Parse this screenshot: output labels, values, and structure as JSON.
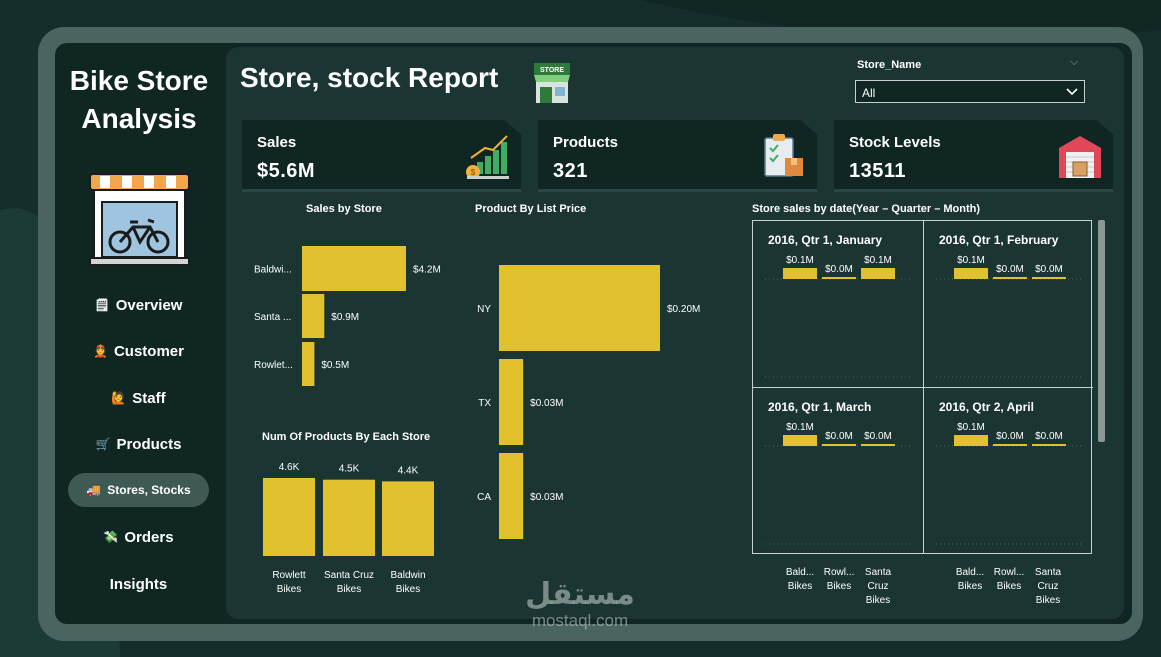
{
  "app": {
    "title_line1": "Bike Store",
    "title_line2": "Analysis"
  },
  "sidebar": {
    "items": [
      {
        "label": "Overview",
        "icon": "document-icon",
        "glyph": "🗒"
      },
      {
        "label": "Customer",
        "icon": "person-icon",
        "glyph": "👲"
      },
      {
        "label": "Staff",
        "icon": "staff-icon",
        "glyph": "🙋"
      },
      {
        "label": "Products",
        "icon": "cart-icon",
        "glyph": "🛒"
      },
      {
        "label": "Stores, Stocks",
        "icon": "truck-icon",
        "glyph": "🚚",
        "active": true
      },
      {
        "label": "Orders",
        "icon": "money-icon",
        "glyph": "💸"
      },
      {
        "label": "Insights",
        "icon": "",
        "glyph": ""
      }
    ]
  },
  "header": {
    "title": "Store, stock Report",
    "store_icon_text": "STORE"
  },
  "slicer": {
    "label": "Store_Name",
    "value": "All"
  },
  "kpis": [
    {
      "label": "Sales",
      "value": "$5.6M",
      "icon": "growth-chart-icon"
    },
    {
      "label": "Products",
      "value": "321",
      "icon": "clipboard-box-icon"
    },
    {
      "label": "Stock Levels",
      "value": "13511",
      "icon": "warehouse-icon"
    }
  ],
  "colors": {
    "bar": "#e2c12f",
    "panel": "#1b3532",
    "card": "#0f2623",
    "frame": "#4a6460"
  },
  "chart_data": [
    {
      "type": "bar",
      "orientation": "horizontal",
      "title": "Sales by Store",
      "categories": [
        "Baldwi...",
        "Santa ...",
        "Rowlet..."
      ],
      "values": [
        4.2,
        0.9,
        0.5
      ],
      "labels": [
        "$4.2M",
        "$0.9M",
        "$0.5M"
      ],
      "unit": "$M"
    },
    {
      "type": "bar",
      "orientation": "horizontal",
      "title": "Product By List Price",
      "categories": [
        "NY",
        "TX",
        "CA"
      ],
      "values": [
        0.2,
        0.03,
        0.03
      ],
      "labels": [
        "$0.20M",
        "$0.03M",
        "$0.03M"
      ],
      "unit": "$M"
    },
    {
      "type": "bar",
      "orientation": "vertical",
      "title": "Num Of Products By Each Store",
      "categories": [
        "Rowlett Bikes",
        "Santa Cruz Bikes",
        "Baldwin Bikes"
      ],
      "category_lines": [
        [
          "Rowlett",
          "Bikes"
        ],
        [
          "Santa Cruz",
          "Bikes"
        ],
        [
          "Baldwin",
          "Bikes"
        ]
      ],
      "values": [
        4.6,
        4.5,
        4.4
      ],
      "labels": [
        "4.6K",
        "4.5K",
        "4.4K"
      ],
      "unit": "K"
    },
    {
      "type": "bar",
      "title": "Store sales by date(Year – Quarter – Month)",
      "panels": [
        {
          "title": "2016, Qtr 1, January",
          "values": [
            0.1,
            0.0,
            0.1
          ],
          "labels": [
            "$0.1M",
            "$0.0M",
            "$0.1M"
          ]
        },
        {
          "title": "2016, Qtr 1, February",
          "values": [
            0.1,
            0.0,
            0.0
          ],
          "labels": [
            "$0.1M",
            "$0.0M",
            "$0.0M"
          ]
        },
        {
          "title": "2016, Qtr 1, March",
          "values": [
            0.1,
            0.0,
            0.0
          ],
          "labels": [
            "$0.1M",
            "$0.0M",
            "$0.0M"
          ]
        },
        {
          "title": "2016, Qtr 2, April",
          "values": [
            0.1,
            0.0,
            0.0
          ],
          "labels": [
            "$0.1M",
            "$0.0M",
            "$0.0M"
          ]
        }
      ],
      "categories": [
        "Baldwin Bikes",
        "Rowlett Bikes",
        "Santa Cruz Bikes"
      ],
      "category_lines": [
        [
          "Bald...",
          "Bikes"
        ],
        [
          "Rowl...",
          "Bikes"
        ],
        [
          "Santa",
          "Cruz",
          "Bikes"
        ]
      ]
    }
  ],
  "watermark": {
    "arabic": "مستقل",
    "latin": "mostaql.com"
  }
}
